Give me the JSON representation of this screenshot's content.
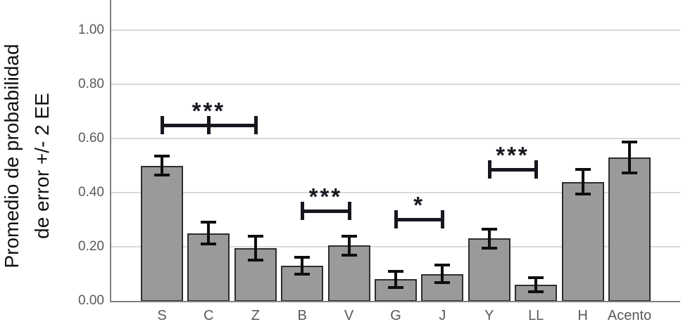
{
  "chart_data": {
    "type": "bar",
    "title": "",
    "ylabel_line1": "Promedio de probabilidad",
    "ylabel_line2": "de error +/- 2 EE",
    "xlabel": "",
    "categories": [
      "S",
      "C",
      "Z",
      "B",
      "V",
      "G",
      "J",
      "Y",
      "LL",
      "H",
      "Acento"
    ],
    "values": [
      0.5,
      0.25,
      0.195,
      0.13,
      0.205,
      0.08,
      0.1,
      0.23,
      0.06,
      0.44,
      0.53
    ],
    "errors": [
      0.035,
      0.04,
      0.045,
      0.03,
      0.035,
      0.03,
      0.033,
      0.035,
      0.025,
      0.045,
      0.056
    ],
    "ytick_labels": [
      "0.00",
      "0.20",
      "0.40",
      "0.60",
      "0.80",
      "1.00"
    ],
    "ytick_values": [
      0,
      0.2,
      0.4,
      0.6,
      0.8,
      1.0
    ],
    "ylim": [
      0,
      1.11
    ],
    "grid": "horizontal",
    "legend": "none",
    "significance_brackets": [
      {
        "from": "S",
        "to": "Z",
        "ticks": [
          "S",
          "C",
          "Z"
        ],
        "label": "***",
        "y": 0.65
      },
      {
        "from": "B",
        "to": "V",
        "ticks": [
          "B",
          "V"
        ],
        "label": "***",
        "y": 0.333
      },
      {
        "from": "G",
        "to": "J",
        "ticks": [
          "G",
          "J"
        ],
        "label": "*",
        "y": 0.302
      },
      {
        "from": "Y",
        "to": "LL",
        "ticks": [
          "Y",
          "LL"
        ],
        "label": "***",
        "y": 0.485
      }
    ],
    "colors": {
      "bar_fill": "#9a9a9a",
      "bar_border": "#2e2e2e",
      "error_bar": "#0e0e0e",
      "axis": "#7f7f7f",
      "gridline": "#d9d9d9",
      "tick_label": "#595959",
      "axis_title": "#111111",
      "significance": "#17171f"
    }
  }
}
